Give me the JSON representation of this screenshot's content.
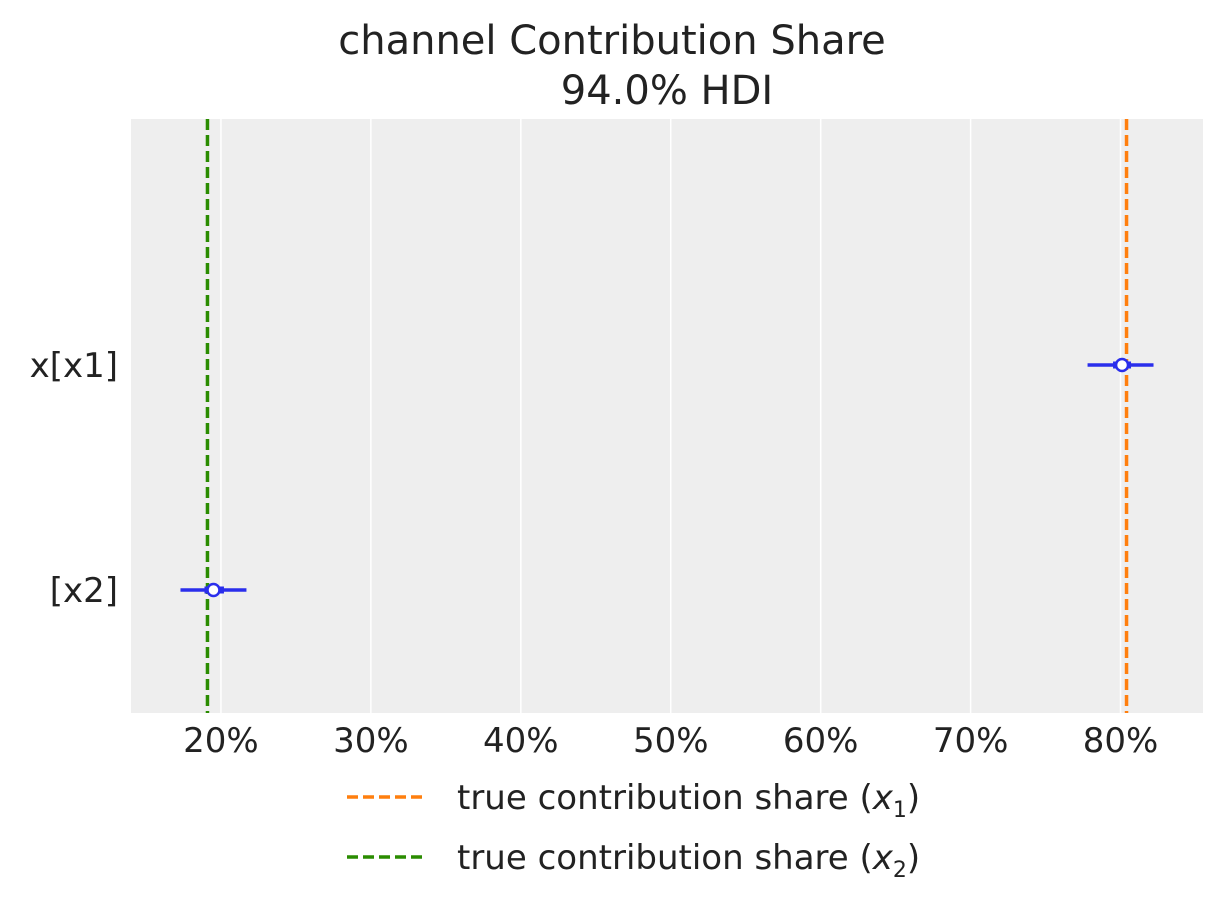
{
  "chart_data": {
    "type": "forest",
    "title": "channel Contribution Share",
    "subtitle": "94.0% HDI",
    "xlabel": "",
    "ylabel": "",
    "xlim": [
      0.14,
      0.855
    ],
    "x_tick_values": [
      0.2,
      0.3,
      0.4,
      0.5,
      0.6,
      0.7,
      0.8
    ],
    "x_tick_labels": [
      "20%",
      "30%",
      "40%",
      "50%",
      "60%",
      "70%",
      "80%"
    ],
    "categories": [
      "x[x1]",
      "[x2]"
    ],
    "series": [
      {
        "name": "x[x1]",
        "median": 0.801,
        "iqr": [
          0.795,
          0.807
        ],
        "hdi_94": [
          0.778,
          0.822
        ]
      },
      {
        "name": "[x2]",
        "median": 0.195,
        "iqr": [
          0.189,
          0.202
        ],
        "hdi_94": [
          0.173,
          0.217
        ]
      }
    ],
    "reference_lines": [
      {
        "name": "true contribution share",
        "subscript": "1",
        "x": 0.804,
        "color": "#ff7f0e"
      },
      {
        "name": "true contribution share",
        "subscript": "2",
        "x": 0.191,
        "color": "#2a8c00"
      }
    ],
    "legend": {
      "placement": "bottom",
      "entries": [
        {
          "label": "true contribution share (",
          "var": "x",
          "sub": "1",
          "close": ")",
          "color": "#ff7f0e"
        },
        {
          "label": "true contribution share (",
          "var": "x",
          "sub": "2",
          "close": ")",
          "color": "#2a8c00"
        }
      ]
    },
    "grid": true,
    "colors": {
      "interval": "#2a2eec",
      "background": "#eeeeee",
      "grid": "#ffffff"
    }
  }
}
